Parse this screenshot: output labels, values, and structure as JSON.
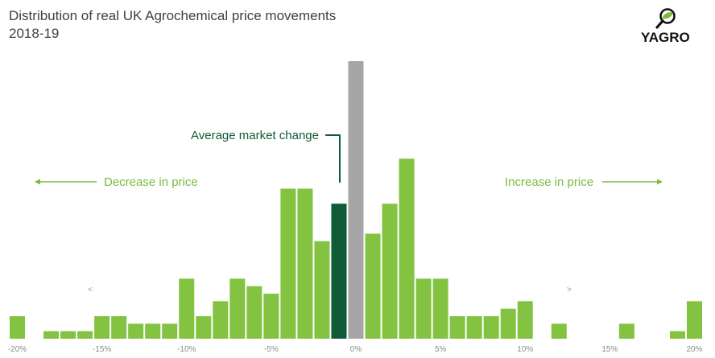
{
  "title": {
    "line1": "Distribution of real UK Agrochemical price movements",
    "line2": "2018-19"
  },
  "logo": {
    "text": "YAGRO",
    "icon": "magnifier-leaf-icon"
  },
  "colors": {
    "bar": "#84c341",
    "average_bar": "#0f5c36",
    "zero_bar": "#a6a6a6",
    "annotation": "#7bbb3c",
    "text": "#404040"
  },
  "annotations": {
    "average_label": "Average market change",
    "decrease_label": "Decrease in price",
    "increase_label": "Increase in price",
    "left_glyph": "<",
    "right_glyph": ">"
  },
  "chart_data": {
    "type": "bar",
    "xlabel": "",
    "ylabel": "",
    "x_ticks": [
      "-20%",
      "-15%",
      "-10%",
      "-5%",
      "0%",
      "5%",
      "10%",
      "15%",
      "20%"
    ],
    "tick_values": [
      -20,
      -15,
      -10,
      -5,
      0,
      5,
      10,
      15,
      20
    ],
    "xlim": [
      -20.5,
      20.5
    ],
    "ylim": [
      0,
      18
    ],
    "bin_width": 1,
    "bins": [
      {
        "x": -20,
        "value": 1.5
      },
      {
        "x": -19,
        "value": 0
      },
      {
        "x": -18,
        "value": 0.5
      },
      {
        "x": -17,
        "value": 0.5
      },
      {
        "x": -16,
        "value": 0.5
      },
      {
        "x": -15,
        "value": 1.5
      },
      {
        "x": -14,
        "value": 1.5
      },
      {
        "x": -13,
        "value": 1
      },
      {
        "x": -12,
        "value": 1
      },
      {
        "x": -11,
        "value": 1
      },
      {
        "x": -10,
        "value": 4
      },
      {
        "x": -9,
        "value": 1.5
      },
      {
        "x": -8,
        "value": 2.5
      },
      {
        "x": -7,
        "value": 4
      },
      {
        "x": -6,
        "value": 3.5
      },
      {
        "x": -5,
        "value": 3
      },
      {
        "x": -4,
        "value": 10
      },
      {
        "x": -3,
        "value": 10
      },
      {
        "x": -2,
        "value": 6.5
      },
      {
        "x": -1,
        "value": 9,
        "highlight": "average"
      },
      {
        "x": 0,
        "value": 18.5,
        "highlight": "zero"
      },
      {
        "x": 1,
        "value": 7
      },
      {
        "x": 2,
        "value": 9
      },
      {
        "x": 3,
        "value": 12
      },
      {
        "x": 4,
        "value": 4
      },
      {
        "x": 5,
        "value": 4
      },
      {
        "x": 6,
        "value": 1.5
      },
      {
        "x": 7,
        "value": 1.5
      },
      {
        "x": 8,
        "value": 1.5
      },
      {
        "x": 9,
        "value": 2
      },
      {
        "x": 10,
        "value": 2.5
      },
      {
        "x": 11,
        "value": 0
      },
      {
        "x": 12,
        "value": 1
      },
      {
        "x": 13,
        "value": 0
      },
      {
        "x": 14,
        "value": 0
      },
      {
        "x": 15,
        "value": 0
      },
      {
        "x": 16,
        "value": 1
      },
      {
        "x": 17,
        "value": 0
      },
      {
        "x": 18,
        "value": 0
      },
      {
        "x": 19,
        "value": 0.5
      },
      {
        "x": 20,
        "value": 2.5
      }
    ],
    "average_bin": -1,
    "legend": "none",
    "grid": false
  }
}
